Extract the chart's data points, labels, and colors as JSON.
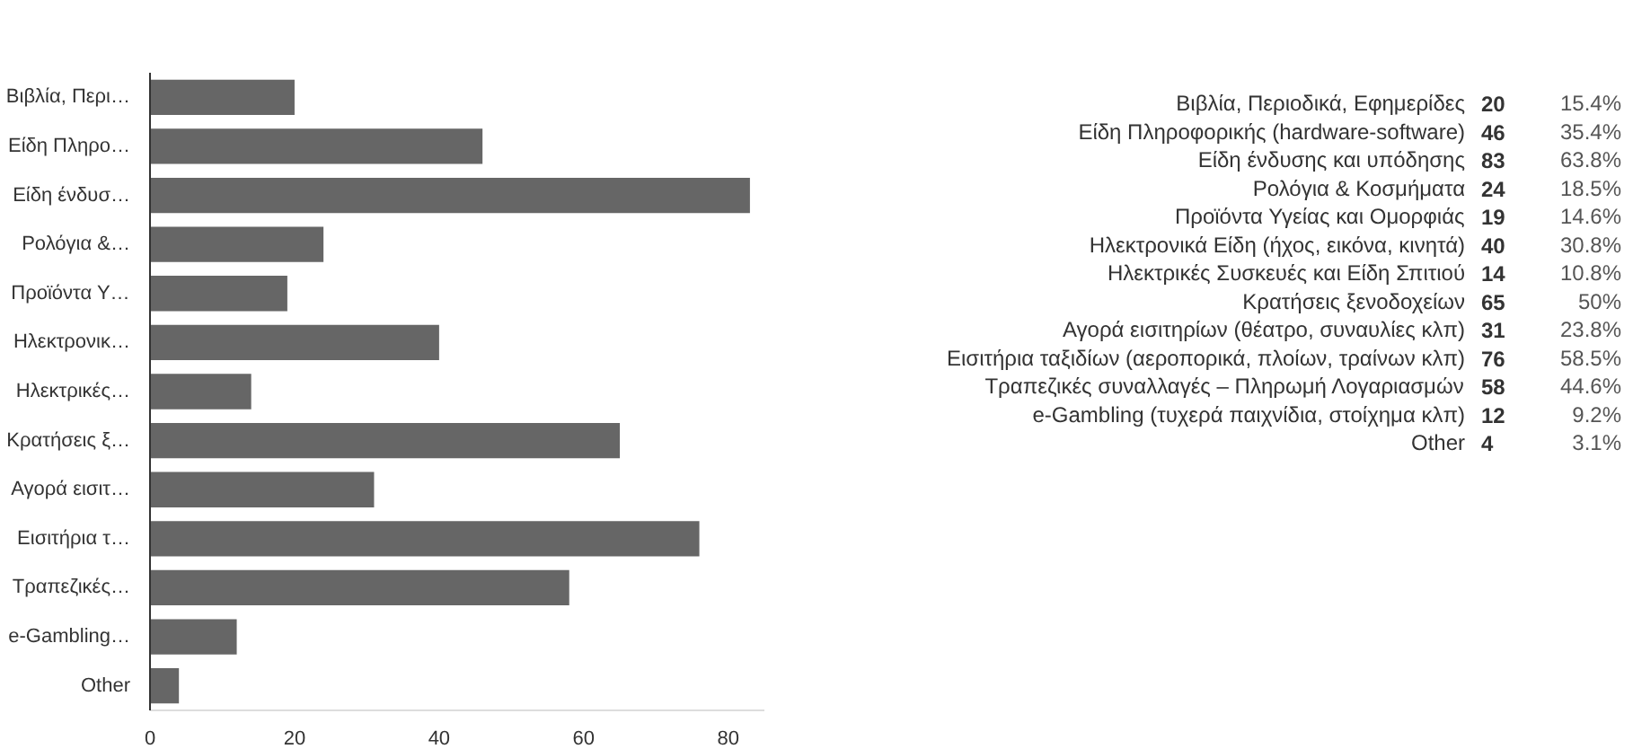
{
  "chart_data": [
    {
      "type": "bar",
      "orientation": "horizontal",
      "categories": [
        "Βιβλία, Περι…",
        "Είδη Πληρο…",
        "Είδη ένδυσ…",
        "Ρολόγια &…",
        "Προϊόντα Υ…",
        "Ηλεκτρονικ…",
        "Ηλεκτρικές…",
        "Κρατήσεις ξ…",
        "Αγορά εισιτ…",
        "Εισιτήρια τ…",
        "Τραπεζικές…",
        "e-Gambling…",
        "Other"
      ],
      "values": [
        20,
        46,
        83,
        24,
        19,
        40,
        14,
        65,
        31,
        76,
        58,
        12,
        4
      ],
      "color": "#666666",
      "xlim": [
        0,
        85
      ],
      "xticks": [
        0,
        20,
        40,
        60,
        80
      ],
      "grid": false
    },
    {
      "type": "other",
      "categories": [
        "Βιβλία, Περιοδικά, Εφημερίδες",
        "Είδη Πληροφορικής (hardware-software)",
        "Είδη ένδυσης και υπόδησης",
        "Ρολόγια & Κοσμήματα",
        "Προϊόντα Υγείας και Ομορφιάς",
        "Ηλεκτρονικά Είδη (ήχος, εικόνα, κινητά)",
        "Ηλεκτρικές Συσκευές και Είδη Σπιτιού",
        "Κρατήσεις ξενοδοχείων",
        "Αγορά εισιτηρίων (θέατρο, συναυλίες κλπ)",
        "Εισιτήρια ταξιδίων (αεροπορικά, πλοίων, τραίνων κλπ)",
        "Τραπεζικές συναλλαγές – Πληρωμή Λογαριασμών",
        "e-Gambling (τυχερά παιχνίδια, στοίχημα κλπ)",
        "Other"
      ],
      "values": [
        20,
        46,
        83,
        24,
        19,
        40,
        14,
        65,
        31,
        76,
        58,
        12,
        4
      ],
      "annotations": [
        "15.4%",
        "35.4%",
        "63.8%",
        "18.5%",
        "14.6%",
        "30.8%",
        "10.8%",
        "50%",
        "23.8%",
        "58.5%",
        "44.6%",
        "9.2%",
        "3.1%"
      ],
      "data_labels": true
    }
  ]
}
